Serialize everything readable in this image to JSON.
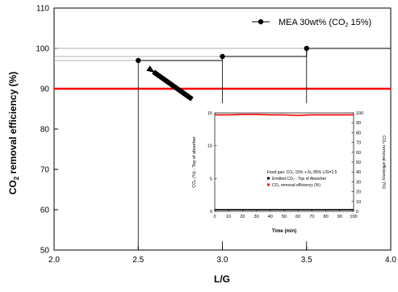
{
  "chart_data": [
    {
      "type": "line",
      "line_style": "step",
      "xlabel": "L/G",
      "ylabel_prefix": "CO",
      "ylabel_sub": "2",
      "ylabel_suffix": " removal efficiency (%)",
      "xlim": [
        2.0,
        4.0
      ],
      "ylim": [
        50,
        110
      ],
      "xticks": [
        2.0,
        2.5,
        3.0,
        3.5,
        4.0
      ],
      "xtick_labels": [
        "2.0",
        "2.5",
        "3.0",
        "3.5",
        "4.0"
      ],
      "yticks": [
        50,
        60,
        70,
        80,
        90,
        100,
        110
      ],
      "ytick_labels": [
        "50",
        "60",
        "70",
        "80",
        "90",
        "100",
        "110"
      ],
      "grid": false,
      "legend_position": "top-right",
      "series": [
        {
          "name_main": "MEA 30wt% (CO",
          "name_sub": "2",
          "name_tail": " 15%)",
          "x": [
            2.5,
            3.0,
            3.5
          ],
          "y": [
            97,
            98,
            100
          ],
          "color": "#000000",
          "marker": "circle"
        }
      ],
      "reference_line": {
        "y": 90,
        "color": "#ff0000"
      },
      "annotation": {
        "type": "arrow",
        "color": "#000000"
      }
    },
    {
      "type": "line",
      "feed_text": "Feed gas: CO₂ 15% + N₂ 85% L/G=2.5",
      "xlabel": "Time (min)",
      "ylabel_left": "CO₂ (%) - Top of absorber",
      "ylabel_right": "CO₂ removal efficiency (%)",
      "xlim": [
        0,
        100
      ],
      "ylim_left": [
        0,
        15
      ],
      "ylim_right": [
        0,
        100
      ],
      "xtick_labels": [
        "0",
        "10",
        "20",
        "30",
        "40",
        "50",
        "60",
        "70",
        "80",
        "90",
        "100"
      ],
      "ytick_left_labels": [
        "0",
        "5",
        "10",
        "15"
      ],
      "ytick_right_labels": [
        "0",
        "10",
        "20",
        "30",
        "40",
        "50",
        "60",
        "70",
        "80",
        "90",
        "100"
      ],
      "legend": [
        {
          "label": "Emitted CO₂ - Top of Absorber",
          "color": "#000000"
        },
        {
          "label": "CO₂ removal efficiency (%)",
          "color": "#ff0000"
        }
      ],
      "series": [
        {
          "label": "Emitted CO₂ - Top of Absorber",
          "axis": "left",
          "color": "#000000",
          "x": [
            0,
            10,
            20,
            30,
            40,
            50,
            60,
            70,
            80,
            90,
            100
          ],
          "y": [
            0.25,
            0.25,
            0.25,
            0.25,
            0.25,
            0.25,
            0.25,
            0.25,
            0.25,
            0.25,
            0.25
          ]
        },
        {
          "label": "CO₂ removal efficiency (%)",
          "axis": "right",
          "color": "#ff0000",
          "x": [
            0,
            10,
            20,
            30,
            40,
            50,
            60,
            70,
            80,
            90,
            100
          ],
          "y": [
            98,
            98,
            98.5,
            98.5,
            98,
            98,
            97.5,
            98,
            98,
            98,
            98
          ]
        }
      ]
    }
  ]
}
